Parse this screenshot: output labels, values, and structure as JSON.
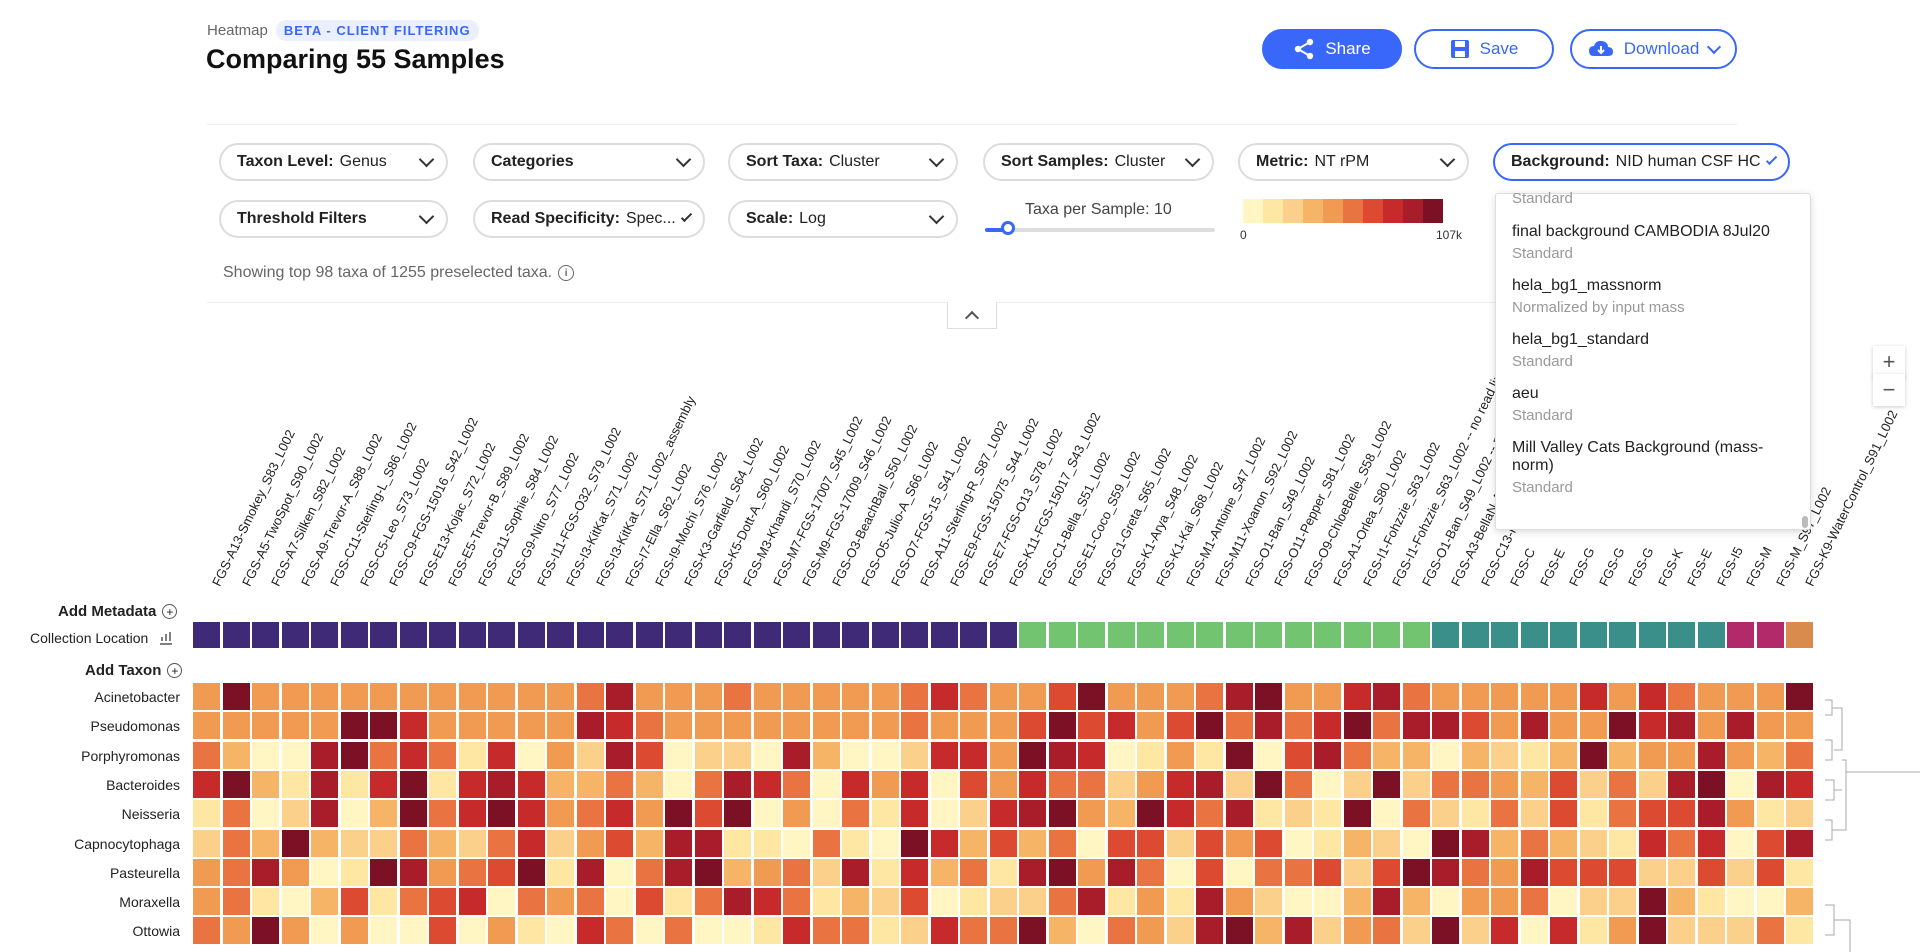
{
  "header": {
    "crumb": "Heatmap",
    "badge": "BETA - CLIENT FILTERING",
    "title": "Comparing 55 Samples",
    "share_label": "Share",
    "save_label": "Save",
    "download_label": "Download"
  },
  "controls": {
    "taxon_level": {
      "label": "Taxon Level:",
      "value": "Genus"
    },
    "categories": {
      "label": "Categories"
    },
    "sort_taxa": {
      "label": "Sort Taxa:",
      "value": "Cluster"
    },
    "sort_samples": {
      "label": "Sort Samples:",
      "value": "Cluster"
    },
    "metric": {
      "label": "Metric:",
      "value": "NT rPM"
    },
    "background": {
      "label": "Background:",
      "value": "NID human CSF HC"
    },
    "threshold": {
      "label": "Threshold Filters"
    },
    "read_specificity": {
      "label": "Read Specificity:",
      "value": "Spec..."
    },
    "scale": {
      "label": "Scale:",
      "value": "Log"
    },
    "taxa_per_sample": {
      "label": "Taxa per Sample:",
      "value": "10",
      "level": 0.1
    },
    "legend_min": "0",
    "legend_max": "107k",
    "showing": "Showing top 98 taxa of 1255 preselected taxa."
  },
  "background_menu": {
    "partial_top": "Standard",
    "options": [
      {
        "name": "final background CAMBODIA 8Jul20",
        "desc": "Standard"
      },
      {
        "name": "hela_bg1_massnorm",
        "desc": "Normalized by input mass"
      },
      {
        "name": "hela_bg1_standard",
        "desc": "Standard"
      },
      {
        "name": "aeu",
        "desc": "Standard"
      },
      {
        "name": "Mill Valley Cats Background (mass-norm)",
        "desc": "Standard"
      }
    ]
  },
  "sidebar": {
    "add_metadata": "Add Metadata",
    "collection_location": "Collection Location",
    "add_taxon": "Add Taxon"
  },
  "taxa": [
    "Acinetobacter",
    "Pseudomonas",
    "Porphyromonas",
    "Bacteroides",
    "Neisseria",
    "Capnocytophaga",
    "Pasteurella",
    "Moraxella",
    "Ottowia"
  ],
  "samples": [
    "FGS-A13-Smokey_S83_L002",
    "FGS-A5-TwoSpot_S90_L002",
    "FGS-A7-Silken_S82_L002",
    "FGS-A9-Trevor-A_S88_L002",
    "FGS-C11-Sterling-L_S86_L002",
    "FGS-C5-Leo_S73_L002",
    "FGS-C9-FGS-15016_S42_L002",
    "FGS-E13-Kojac_S72_L002",
    "FGS-E5-Trevor-B_S89_L002",
    "FGS-G11-Sophie_S84_L002",
    "FGS-G9-Nitro_S77_L002",
    "FGS-I11-FGS-O32_S79_L002",
    "FGS-I3-KitKat_S71_L002",
    "FGS-I3-KitKat_S71_L002_assembly",
    "FGS-I7-Ella_S62_L002",
    "FGS-I9-Mochi_S76_L002",
    "FGS-K3-Garfield_S64_L002",
    "FGS-K5-Dott-A_S60_L002",
    "FGS-M3-Khandi_S70_L002",
    "FGS-M7-FGS-17007_S45_L002",
    "FGS-M9-FGS-17009_S46_L002",
    "FGS-O3-BeachBall_S50_L002",
    "FGS-O5-Julio-A_S66_L002",
    "FGS-O7-FGS-15_S41_L002",
    "FGS-A11-Sterling-R_S87_L002",
    "FGS-E9-FGS-15075_S44_L002",
    "FGS-E7-FGS-O13_S78_L002",
    "FGS-K11-FGS-15017_S43_L002",
    "FGS-C1-Bella_S51_L002",
    "FGS-E1-Coco_S59_L002",
    "FGS-G1-Greta_S65_L002",
    "FGS-K1-Arya_S48_L002",
    "FGS-K1-Kai_S68_L002",
    "FGS-M1-Antoine_S47_L002",
    "FGS-M11-Xoanon_S92_L002",
    "FGS-O1-Ban_S49_L002",
    "FGS-O11-Pepper_S81_L002",
    "FGS-O9-ChloeBelle_S58_L002",
    "FGS-A1-Orlea_S80_L002",
    "FGS-I1-Fohzzie_S63_L002",
    "FGS-I1-Fohzzie_S63_L002 -- no read limit",
    "FGS-O1-Ban_S49_L002 -- no read limit",
    "FGS-A3-BellaN-A_S57_L002",
    "FGS-C13-K",
    "FGS-C",
    "FGS-E",
    "FGS-G",
    "FGS-G",
    "FGS-G",
    "FGS-K",
    "FGS-E",
    "FGS-I5",
    "FGS-M",
    "FGS-M_S97_L002",
    "FGS-K9-WaterControl_S91_L002"
  ],
  "colors": {
    "accent": "#3867fa",
    "location": [
      "#3f2a78",
      "#73c471",
      "#3a8f8a",
      "#b22a6a",
      "#d98b4d"
    ],
    "scale": [
      "#fff6c4",
      "#fde7a3",
      "#fad08a",
      "#f6b566",
      "#f19a52",
      "#e97341",
      "#dc4a32",
      "#c72a2a",
      "#a91d2a",
      "#7c1024"
    ]
  }
}
